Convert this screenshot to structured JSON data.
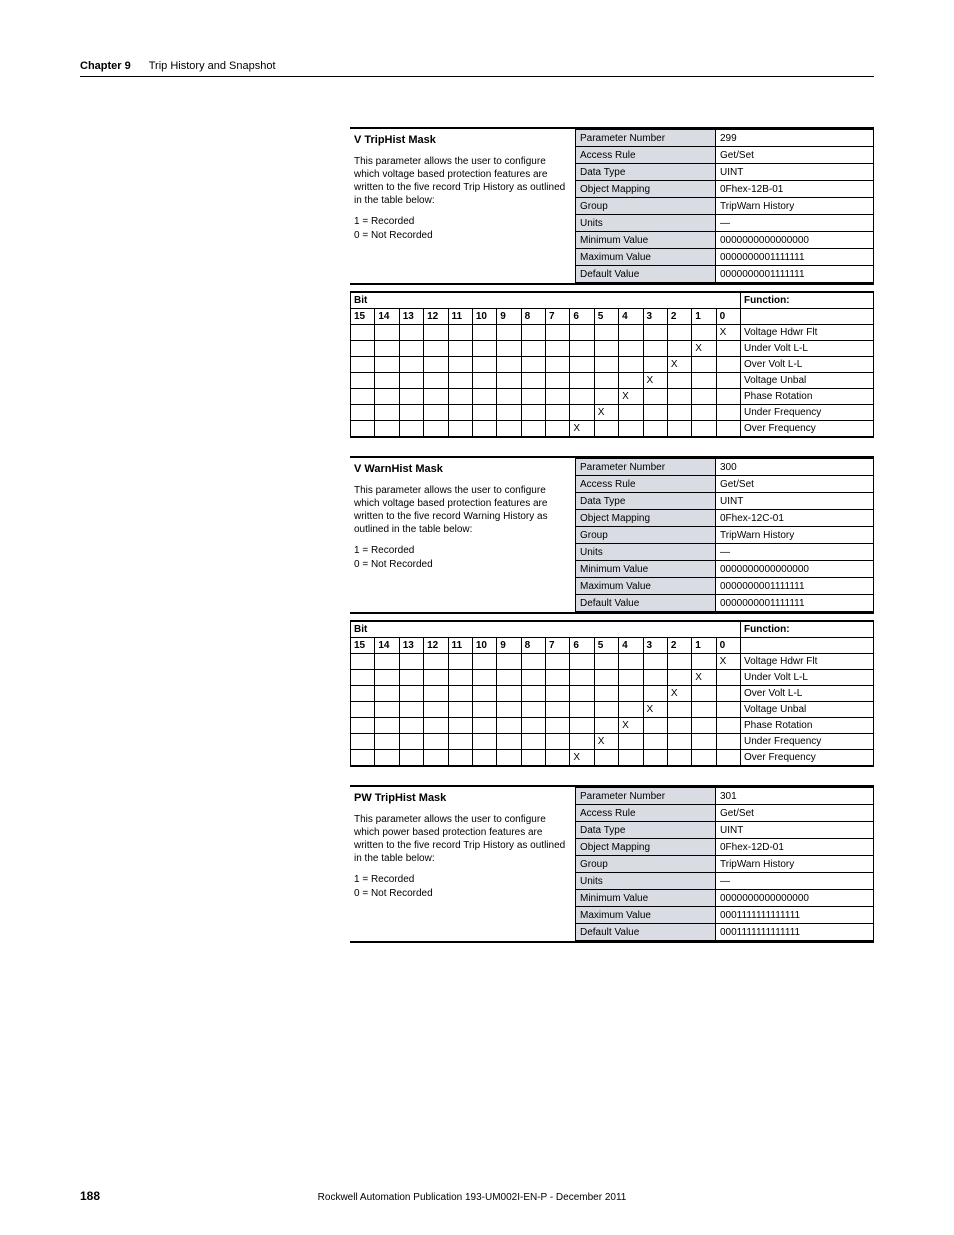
{
  "header": {
    "chapter_label": "Chapter 9",
    "chapter_title": "Trip History and Snapshot"
  },
  "sections": [
    {
      "title": "V TripHist Mask",
      "desc": "This parameter allows the user to configure which voltage based protection features are written to the five record  Trip History as outlined in the table below:",
      "legend": [
        "1 = Recorded",
        "0 = Not Recorded"
      ],
      "params": [
        [
          "Parameter Number",
          "299"
        ],
        [
          "Access Rule",
          "Get/Set"
        ],
        [
          "Data Type",
          "UINT"
        ],
        [
          "Object Mapping",
          "0Fhex-12B-01"
        ],
        [
          "Group",
          "TripWarn History"
        ],
        [
          "Units",
          "—"
        ],
        [
          "Minimum Value",
          "0000000000000000"
        ],
        [
          "Maximum Value",
          "0000000001111111"
        ],
        [
          "Default Value",
          "0000000001111111"
        ]
      ],
      "functions": [
        {
          "bit": 0,
          "label": "Voltage Hdwr Flt"
        },
        {
          "bit": 1,
          "label": "Under Volt L-L"
        },
        {
          "bit": 2,
          "label": "Over Volt L-L"
        },
        {
          "bit": 3,
          "label": "Voltage Unbal"
        },
        {
          "bit": 4,
          "label": "Phase Rotation"
        },
        {
          "bit": 5,
          "label": "Under Frequency"
        },
        {
          "bit": 6,
          "label": "Over Frequency"
        }
      ]
    },
    {
      "title": "V WarnHist Mask",
      "desc": "This parameter allows the user to configure which voltage based protection features are written to the five record Warning History as outlined in the table below:",
      "legend": [
        "1 = Recorded",
        "0 = Not Recorded"
      ],
      "params": [
        [
          "Parameter Number",
          "300"
        ],
        [
          "Access Rule",
          "Get/Set"
        ],
        [
          "Data Type",
          "UINT"
        ],
        [
          "Object Mapping",
          "0Fhex-12C-01"
        ],
        [
          "Group",
          "TripWarn History"
        ],
        [
          "Units",
          "—"
        ],
        [
          "Minimum Value",
          "0000000000000000"
        ],
        [
          "Maximum Value",
          "0000000001111111"
        ],
        [
          "Default Value",
          "0000000001111111"
        ]
      ],
      "functions": [
        {
          "bit": 0,
          "label": "Voltage Hdwr Flt"
        },
        {
          "bit": 1,
          "label": "Under Volt L-L"
        },
        {
          "bit": 2,
          "label": "Over Volt L-L"
        },
        {
          "bit": 3,
          "label": "Voltage Unbal"
        },
        {
          "bit": 4,
          "label": "Phase Rotation"
        },
        {
          "bit": 5,
          "label": "Under Frequency"
        },
        {
          "bit": 6,
          "label": "Over Frequency"
        }
      ]
    },
    {
      "title": "PW TripHist Mask",
      "desc": "This parameter allows the user to configure which power based protection features are written to the five record Trip History as outlined in the table below:",
      "legend": [
        "1 = Recorded",
        "0 = Not Recorded"
      ],
      "params": [
        [
          "Parameter Number",
          "301"
        ],
        [
          "Access Rule",
          "Get/Set"
        ],
        [
          "Data Type",
          "UINT"
        ],
        [
          "Object Mapping",
          "0Fhex-12D-01"
        ],
        [
          "Group",
          "TripWarn History"
        ],
        [
          "Units",
          "—"
        ],
        [
          "Minimum Value",
          "0000000000000000"
        ],
        [
          "Maximum Value",
          "0001111111111111"
        ],
        [
          "Default Value",
          "0001111111111111"
        ]
      ],
      "functions": null
    }
  ],
  "bit_header": {
    "bit_label": "Bit",
    "func_label": "Function:",
    "cols": [
      "15",
      "14",
      "13",
      "12",
      "11",
      "10",
      "9",
      "8",
      "7",
      "6",
      "5",
      "4",
      "3",
      "2",
      "1",
      "0"
    ]
  },
  "footer": {
    "page_number": "188",
    "publication": "Rockwell Automation Publication 193-UM002I-EN-P - December 2011"
  }
}
